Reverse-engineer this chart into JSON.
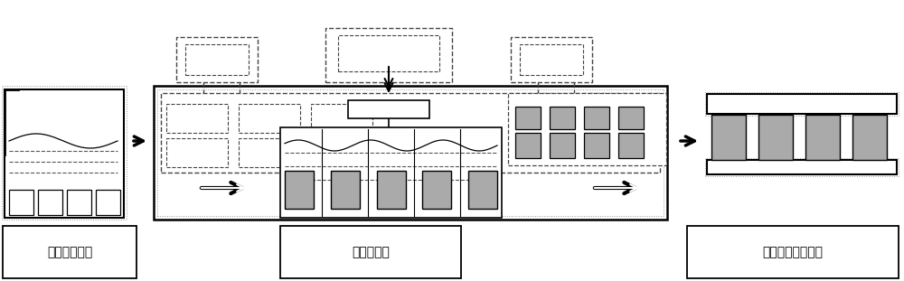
{
  "label1": "磁体表面清洁",
  "label2": "热浸镀处理",
  "label3": "扩散及退火热处理",
  "bg_color": "#ffffff",
  "gray_color": "#aaaaaa",
  "dashed_color": "#444444",
  "figsize": [
    10.0,
    3.11
  ],
  "dpi": 100
}
